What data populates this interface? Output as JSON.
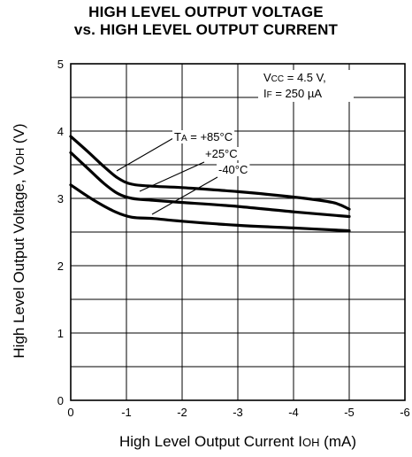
{
  "chart_data": {
    "type": "line",
    "title": [
      "HIGH LEVEL OUTPUT VOLTAGE",
      "vs. HIGH LEVEL OUTPUT CURRENT"
    ],
    "xlabel": {
      "text": "High Level Output Current I",
      "sub": "OH",
      "unit": " (mA)"
    },
    "ylabel": {
      "text": "High Level Output Voltage, V",
      "sub": "OH",
      "unit": " (V)"
    },
    "xlim": [
      0,
      -6
    ],
    "ylim": [
      0,
      5
    ],
    "x_ticks": [
      "0",
      "-1",
      "-2",
      "-3",
      "-4",
      "-5",
      "-6"
    ],
    "y_ticks": [
      "0",
      "1",
      "2",
      "3",
      "4",
      "5"
    ],
    "grid": true,
    "conditions": [
      {
        "main": "V",
        "sub": "CC",
        "rest": " = 4.5 V,"
      },
      {
        "main": "I",
        "sub": "F",
        "rest": " = 250 µA"
      }
    ],
    "series": [
      {
        "name": "T A = +85°C",
        "label_main": "T",
        "label_sub": "A",
        "label_rest": " = +85°C",
        "x": [
          0,
          -0.3,
          -0.6,
          -0.85,
          -1.1,
          -1.5,
          -2,
          -3,
          -4,
          -4.7,
          -5
        ],
        "y": [
          3.92,
          3.7,
          3.47,
          3.3,
          3.21,
          3.18,
          3.16,
          3.1,
          3.02,
          2.94,
          2.84
        ]
      },
      {
        "name": "+25°C",
        "label_main": "+25°C",
        "x": [
          0,
          -0.3,
          -0.6,
          -0.85,
          -1.1,
          -1.5,
          -2,
          -3,
          -4,
          -5
        ],
        "y": [
          3.68,
          3.45,
          3.22,
          3.07,
          3.0,
          2.97,
          2.94,
          2.88,
          2.8,
          2.73
        ]
      },
      {
        "name": "-40°C",
        "label_main": "-40°C",
        "x": [
          0,
          -0.4,
          -0.8,
          -1.1,
          -1.5,
          -2,
          -3,
          -4,
          -5
        ],
        "y": [
          3.2,
          2.98,
          2.8,
          2.72,
          2.7,
          2.66,
          2.6,
          2.56,
          2.52
        ]
      }
    ]
  }
}
